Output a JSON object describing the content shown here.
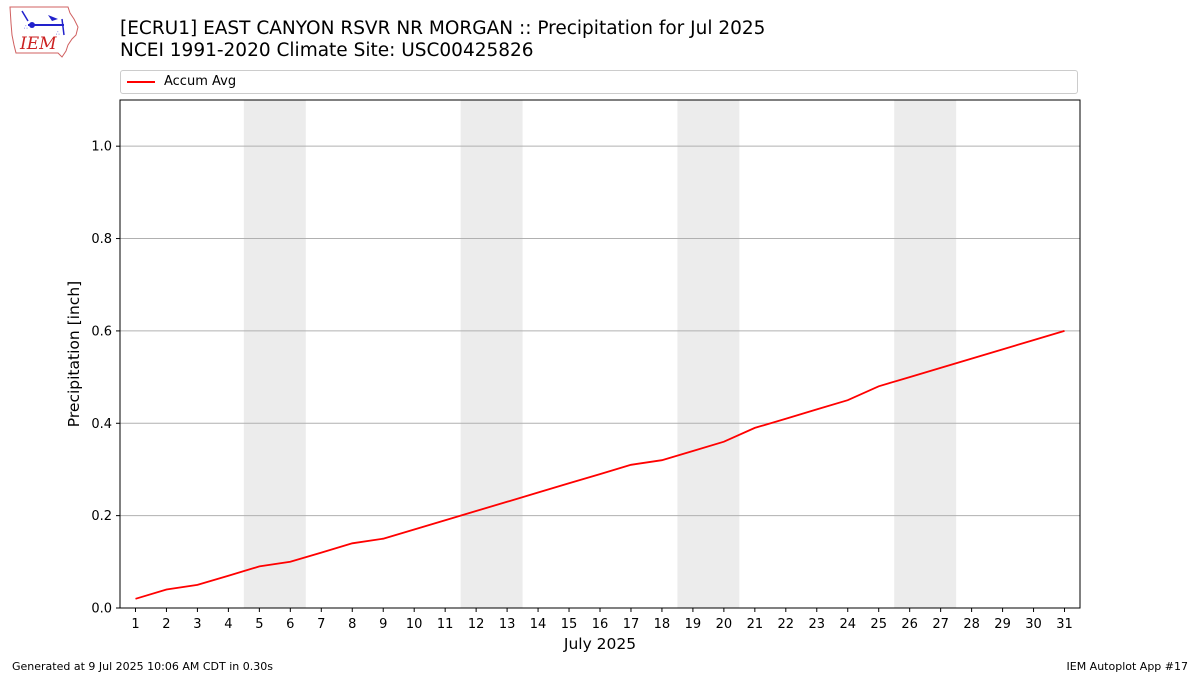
{
  "header": {
    "title_line1": "[ECRU1] EAST CANYON RSVR NR MORGAN :: Precipitation for Jul 2025",
    "title_line2": "NCEI 1991-2020 Climate Site: USC00425826"
  },
  "logo": {
    "text": "IEM"
  },
  "footer": {
    "generated": "Generated at 9 Jul 2025 10:06 AM CDT in 0.30s",
    "app": "IEM Autoplot App #17"
  },
  "colors": {
    "line": "#ff0000",
    "weekend": "#ececec",
    "grid": "#b0b0b0"
  },
  "chart_data": {
    "type": "line",
    "xlabel": "July 2025",
    "ylabel": "Precipitation [inch]",
    "ylim": [
      0,
      1.1
    ],
    "xlim": [
      0.5,
      31.5
    ],
    "yticks": [
      "0.0",
      "0.2",
      "0.4",
      "0.6",
      "0.8",
      "1.0"
    ],
    "grid": "horizontal",
    "legend_placement": "top",
    "weekend_spans": [
      [
        4.5,
        6.5
      ],
      [
        11.5,
        13.5
      ],
      [
        18.5,
        20.5
      ],
      [
        25.5,
        27.5
      ]
    ],
    "x": [
      1,
      2,
      3,
      4,
      5,
      6,
      7,
      8,
      9,
      10,
      11,
      12,
      13,
      14,
      15,
      16,
      17,
      18,
      19,
      20,
      21,
      22,
      23,
      24,
      25,
      26,
      27,
      28,
      29,
      30,
      31
    ],
    "series": [
      {
        "name": "Accum Avg",
        "color": "#ff0000",
        "values": [
          0.02,
          0.04,
          0.05,
          0.07,
          0.09,
          0.1,
          0.12,
          0.14,
          0.15,
          0.17,
          0.19,
          0.21,
          0.23,
          0.25,
          0.27,
          0.29,
          0.31,
          0.32,
          0.34,
          0.36,
          0.39,
          0.41,
          0.43,
          0.45,
          0.48,
          0.5,
          0.52,
          0.54,
          0.56,
          0.58,
          0.6
        ]
      }
    ]
  }
}
